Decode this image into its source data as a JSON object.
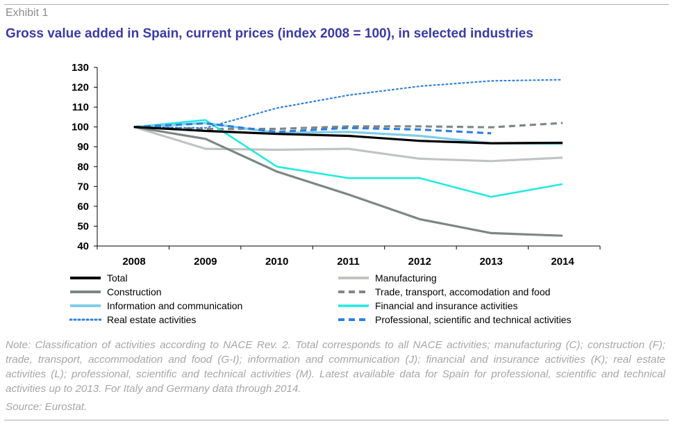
{
  "header": {
    "exhibit": "Exhibit 1",
    "title": "Gross value added in Spain, current prices (index 2008 = 100), in selected industries"
  },
  "chart_data": {
    "type": "line",
    "title": "Gross value added in Spain, current prices (index 2008 = 100), in selected industries",
    "x": [
      "2008",
      "2009",
      "2010",
      "2011",
      "2012",
      "2013",
      "2014"
    ],
    "ylim": [
      40,
      130
    ],
    "yticks": [
      40,
      50,
      60,
      70,
      80,
      90,
      100,
      110,
      120,
      130
    ],
    "xlabel": "",
    "ylabel": "",
    "grid": false,
    "legend_position": "bottom",
    "series": [
      {
        "name": "Total",
        "color": "#000000",
        "style": "solid",
        "width": 3.2,
        "values": [
          100,
          98,
          96.5,
          95.5,
          93,
          91.8,
          92
        ]
      },
      {
        "name": "Manufacturing",
        "color": "#c0c4c0",
        "style": "solid",
        "width": 3.2,
        "values": [
          100,
          89,
          88.5,
          89,
          84,
          82.8,
          84.5
        ]
      },
      {
        "name": "Construction",
        "color": "#7c8783",
        "style": "solid",
        "width": 3.2,
        "values": [
          100,
          94,
          77.5,
          66,
          53.5,
          46.5,
          45.2
        ]
      },
      {
        "name": "Trade, transport, accomodation and food",
        "color": "#7f8784",
        "style": "dash",
        "width": 3.2,
        "values": [
          100,
          99,
          99,
          100.3,
          100.3,
          99.8,
          102
        ]
      },
      {
        "name": "Information and communication",
        "color": "#7fcde8",
        "style": "solid",
        "width": 3.2,
        "values": [
          100,
          102,
          97,
          97.5,
          95.5,
          91.8,
          91.5
        ]
      },
      {
        "name": "Financial and insurance activities",
        "color": "#22eae0",
        "style": "solid",
        "width": 2.6,
        "values": [
          100,
          103.5,
          80,
          74.2,
          74.2,
          64.8,
          71.2
        ]
      },
      {
        "name": "Real estate activities",
        "color": "#2e7fe0",
        "style": "dot",
        "width": 2.2,
        "values": [
          100,
          99.5,
          109.5,
          116,
          120.5,
          123.2,
          123.8
        ]
      },
      {
        "name": "Professional, scientific and technical activities",
        "color": "#2e7fe0",
        "style": "dash",
        "width": 3.2,
        "values": [
          100,
          101.8,
          97.5,
          99.5,
          98.7,
          96.8,
          null
        ]
      }
    ]
  },
  "footer": {
    "note": "Note: Classification of activities according to NACE Rev. 2. Total corresponds to all NACE activities; manufacturing (C); construction (F); trade, transport, accommodation and food (G-I); information and communication (J); financial and insurance activities (K); real estate activities (L); professional, scientific and technical activities (M). Latest available data for Spain for professional, scientific and technical activities up to 2013. For Italy and Germany data through 2014.",
    "source": "Source: Eurostat."
  }
}
